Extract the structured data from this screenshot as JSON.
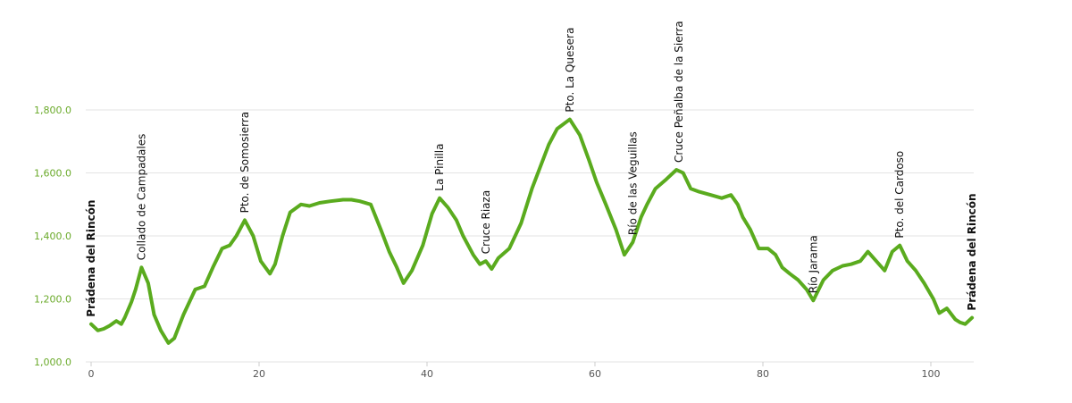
{
  "chart_data": {
    "type": "line",
    "title": "",
    "xlabel": "",
    "ylabel": "",
    "xlim": [
      0,
      105
    ],
    "ylim": [
      1000,
      1800
    ],
    "grid": true,
    "line_color": "#5aab1e",
    "ytick_color": "#6aaa2a",
    "xticks": [
      {
        "value": 0,
        "label": "0"
      },
      {
        "value": 20,
        "label": "20"
      },
      {
        "value": 40,
        "label": "40"
      },
      {
        "value": 60,
        "label": "60"
      },
      {
        "value": 80,
        "label": "80"
      },
      {
        "value": 100,
        "label": "100"
      }
    ],
    "yticks": [
      {
        "value": 1000,
        "label": "1,000.0"
      },
      {
        "value": 1200,
        "label": "1,200.0"
      },
      {
        "value": 1400,
        "label": "1,400.0"
      },
      {
        "value": 1600,
        "label": "1,600.0"
      },
      {
        "value": 1800,
        "label": "1,800.0"
      }
    ],
    "series": [
      {
        "x": [
          0,
          0.8,
          1.5,
          2.2,
          3,
          3.6,
          4,
          4.8,
          5.3,
          6,
          6.8,
          7.5,
          8.3,
          9.2,
          9.9,
          11,
          12.4,
          13.5,
          14.5,
          15.6,
          16.5,
          17.3,
          18.3,
          19.3,
          20.2,
          21.3,
          21.9,
          22.8,
          23.7,
          25,
          26,
          27.2,
          28.5,
          30,
          31,
          32,
          33.3,
          34.5,
          35.5,
          36.4,
          37.2,
          38.2,
          39.5,
          40.6,
          41.5,
          42.5,
          43.5,
          44.3,
          45.5,
          46.3,
          47,
          47.7,
          48.5,
          49.8,
          51.2,
          52.5,
          53.5,
          54.5,
          55.5,
          57,
          58.2,
          59.3,
          60.2,
          61.3,
          62.5,
          63.5,
          64.5,
          65.5,
          66.2,
          67.2,
          68.5,
          69.7,
          70.5,
          71.4,
          72.4,
          73.8,
          75.1,
          76.2,
          77,
          77.6,
          78.5,
          79.5,
          80.6,
          81.5,
          82.3,
          83.2,
          84.2,
          85.2,
          86,
          87.2,
          88.3,
          89.5,
          90.5,
          91.6,
          92.5,
          93.5,
          94.5,
          95.4,
          96.3,
          97.2,
          98.2,
          99.2,
          100.3,
          101,
          101.9,
          102.9,
          103.5,
          104.1,
          104.9
        ],
        "y": [
          1120,
          1100,
          1105,
          1115,
          1130,
          1120,
          1140,
          1190,
          1230,
          1300,
          1250,
          1150,
          1100,
          1060,
          1075,
          1150,
          1230,
          1240,
          1300,
          1360,
          1370,
          1400,
          1450,
          1400,
          1320,
          1280,
          1310,
          1400,
          1475,
          1500,
          1495,
          1505,
          1510,
          1515,
          1515,
          1510,
          1500,
          1420,
          1350,
          1300,
          1250,
          1290,
          1370,
          1470,
          1520,
          1490,
          1450,
          1400,
          1340,
          1310,
          1320,
          1295,
          1330,
          1360,
          1440,
          1550,
          1620,
          1690,
          1740,
          1770,
          1720,
          1640,
          1570,
          1500,
          1420,
          1340,
          1380,
          1460,
          1500,
          1550,
          1580,
          1610,
          1600,
          1550,
          1540,
          1530,
          1520,
          1530,
          1500,
          1460,
          1420,
          1360,
          1360,
          1340,
          1300,
          1280,
          1260,
          1230,
          1195,
          1260,
          1290,
          1305,
          1310,
          1320,
          1350,
          1320,
          1290,
          1350,
          1370,
          1320,
          1290,
          1250,
          1200,
          1155,
          1170,
          1135,
          1125,
          1120,
          1140
        ]
      }
    ],
    "waypoints": [
      {
        "x": 0,
        "y": 1120,
        "label": "Prádena del Rincón",
        "bold": true
      },
      {
        "x": 6,
        "y": 1300,
        "label": "Collado de Campadales",
        "bold": false
      },
      {
        "x": 18.3,
        "y": 1450,
        "label": "Pto. de Somosierra",
        "bold": false
      },
      {
        "x": 41.5,
        "y": 1520,
        "label": "La Pinilla",
        "bold": false
      },
      {
        "x": 47,
        "y": 1320,
        "label": "Cruce Riaza",
        "bold": false
      },
      {
        "x": 57,
        "y": 1770,
        "label": "Pto. La Quesera",
        "bold": false
      },
      {
        "x": 64.5,
        "y": 1380,
        "label": "Río de las Veguillas",
        "bold": false
      },
      {
        "x": 70,
        "y": 1610,
        "label": "Cruce Peñalba de la Sierra",
        "bold": false
      },
      {
        "x": 86,
        "y": 1195,
        "label": "Río Jarama",
        "bold": false
      },
      {
        "x": 96.3,
        "y": 1370,
        "label": "Pto. del Cardoso",
        "bold": false
      },
      {
        "x": 104.9,
        "y": 1140,
        "label": "Prádena del Rincón",
        "bold": true
      }
    ]
  }
}
